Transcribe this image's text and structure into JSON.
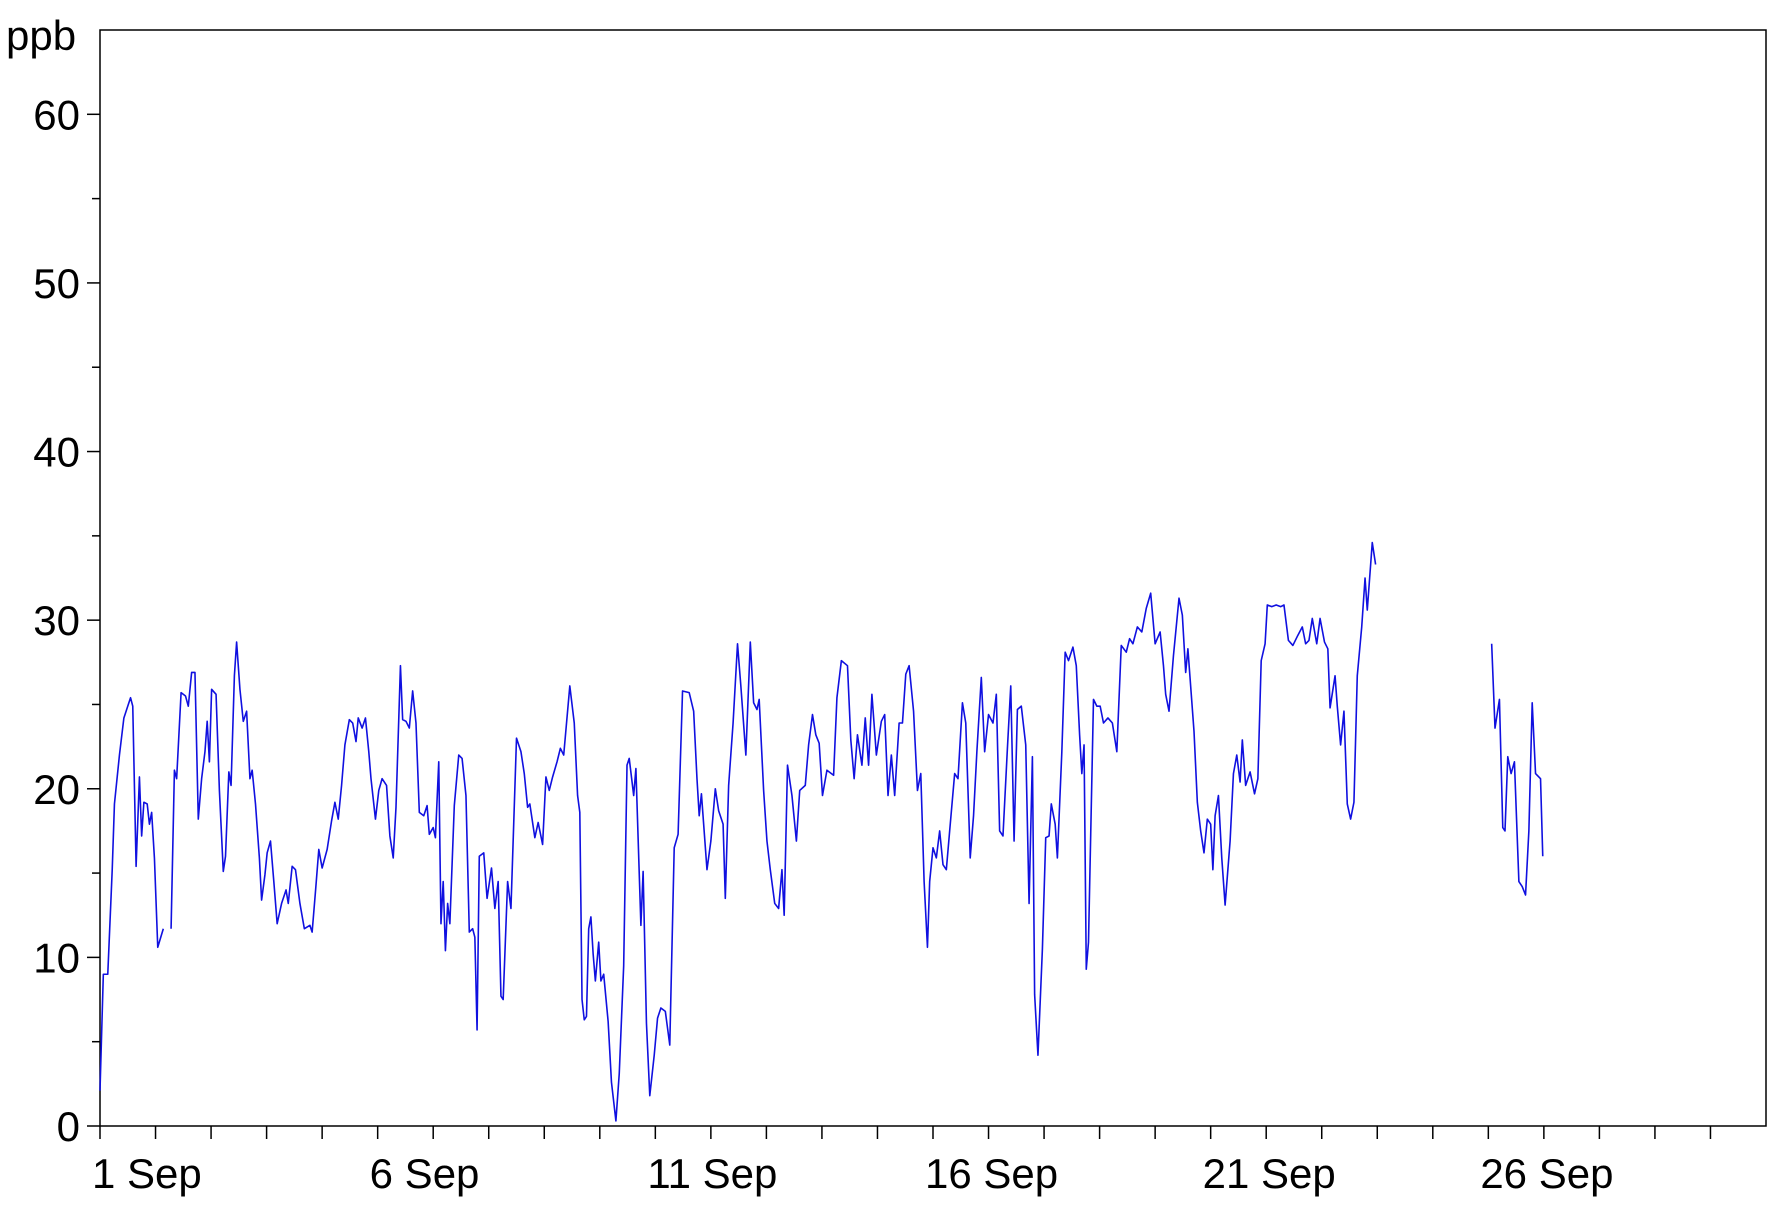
{
  "chart_data": {
    "type": "line",
    "y_label": "ppb",
    "xlim": [
      1,
      31
    ],
    "ylim": [
      0,
      65
    ],
    "xticks": [
      {
        "value": 1,
        "label": "1 Sep"
      },
      {
        "value": 6,
        "label": "6 Sep"
      },
      {
        "value": 11,
        "label": "11 Sep"
      },
      {
        "value": 16,
        "label": "16 Sep"
      },
      {
        "value": 21,
        "label": "21 Sep"
      },
      {
        "value": 26,
        "label": "26 Sep"
      }
    ],
    "xminorticks": [
      2,
      3,
      4,
      5,
      7,
      8,
      9,
      10,
      12,
      13,
      14,
      15,
      17,
      18,
      19,
      20,
      22,
      23,
      24,
      25,
      27,
      28,
      29,
      30
    ],
    "yticks": [
      0,
      10,
      20,
      30,
      40,
      50,
      60
    ],
    "yminorticks": [
      5,
      15,
      25,
      35,
      45,
      55
    ],
    "color": "#1010e0",
    "x": [
      1.0,
      1.06,
      1.14,
      1.22,
      1.26,
      1.35,
      1.43,
      1.55,
      1.59,
      1.65,
      1.71,
      1.75,
      1.79,
      1.85,
      1.89,
      1.93,
      1.98,
      2.04,
      2.14,
      2.2,
      2.28,
      2.34,
      2.38,
      2.46,
      2.54,
      2.59,
      2.65,
      2.71,
      2.77,
      2.83,
      2.89,
      2.93,
      2.97,
      3.01,
      3.09,
      3.15,
      3.22,
      3.26,
      3.32,
      3.36,
      3.42,
      3.46,
      3.52,
      3.58,
      3.64,
      3.7,
      3.74,
      3.8,
      3.87,
      3.91,
      3.97,
      4.01,
      4.07,
      4.13,
      4.19,
      4.27,
      4.35,
      4.39,
      4.46,
      4.52,
      4.6,
      4.68,
      4.78,
      4.82,
      4.88,
      4.94,
      5.0,
      5.09,
      5.17,
      5.23,
      5.29,
      5.35,
      5.41,
      5.49,
      5.55,
      5.61,
      5.65,
      5.72,
      5.78,
      5.84,
      5.88,
      5.96,
      6.02,
      6.08,
      6.16,
      6.22,
      6.28,
      6.33,
      6.41,
      6.45,
      6.51,
      6.57,
      6.63,
      6.69,
      6.75,
      6.83,
      6.89,
      6.93,
      7.0,
      7.04,
      7.1,
      7.14,
      7.18,
      7.22,
      7.26,
      7.3,
      7.38,
      7.46,
      7.52,
      7.59,
      7.65,
      7.71,
      7.75,
      7.79,
      7.83,
      7.91,
      7.97,
      8.05,
      8.11,
      8.17,
      8.22,
      8.26,
      8.34,
      8.4,
      8.5,
      8.58,
      8.64,
      8.7,
      8.74,
      8.83,
      8.89,
      8.97,
      9.03,
      9.09,
      9.15,
      9.23,
      9.29,
      9.35,
      9.46,
      9.54,
      9.6,
      9.64,
      9.68,
      9.72,
      9.76,
      9.8,
      9.84,
      9.88,
      9.92,
      9.98,
      10.02,
      10.07,
      10.15,
      10.21,
      10.29,
      10.35,
      10.43,
      10.49,
      10.53,
      10.61,
      10.65,
      10.74,
      10.78,
      10.84,
      10.9,
      10.98,
      11.04,
      11.1,
      11.18,
      11.22,
      11.26,
      11.34,
      11.41,
      11.49,
      11.61,
      11.69,
      11.75,
      11.79,
      11.83,
      11.93,
      12.0,
      12.08,
      12.14,
      12.22,
      12.26,
      12.32,
      12.4,
      12.48,
      12.54,
      12.63,
      12.71,
      12.77,
      12.83,
      12.87,
      12.95,
      13.01,
      13.07,
      13.15,
      13.22,
      13.28,
      13.32,
      13.38,
      13.46,
      13.54,
      13.6,
      13.7,
      13.76,
      13.83,
      13.89,
      13.95,
      14.01,
      14.09,
      14.21,
      14.27,
      14.35,
      14.46,
      14.52,
      14.58,
      14.64,
      14.72,
      14.78,
      14.84,
      14.9,
      14.98,
      15.07,
      15.13,
      15.19,
      15.25,
      15.31,
      15.39,
      15.45,
      15.51,
      15.57,
      15.65,
      15.72,
      15.78,
      15.84,
      15.9,
      15.94,
      16.0,
      16.06,
      16.12,
      16.18,
      16.24,
      16.3,
      16.39,
      16.45,
      16.53,
      16.59,
      16.67,
      16.73,
      16.79,
      16.87,
      16.93,
      17.0,
      17.08,
      17.14,
      17.2,
      17.26,
      17.34,
      17.4,
      17.46,
      17.52,
      17.59,
      17.67,
      17.73,
      17.79,
      17.83,
      17.89,
      17.97,
      18.03,
      18.09,
      18.13,
      18.2,
      18.24,
      18.32,
      18.38,
      18.44,
      18.52,
      18.58,
      18.64,
      18.68,
      18.72,
      18.76,
      18.8,
      18.89,
      18.95,
      19.01,
      19.07,
      19.15,
      19.23,
      19.31,
      19.39,
      19.48,
      19.54,
      19.6,
      19.68,
      19.76,
      19.84,
      19.92,
      20.0,
      20.09,
      20.15,
      20.19,
      20.25,
      20.33,
      20.43,
      20.49,
      20.55,
      20.59,
      20.7,
      20.76,
      20.82,
      20.88,
      20.94,
      21.0,
      21.04,
      21.08,
      21.14,
      21.2,
      21.26,
      21.35,
      21.41,
      21.47,
      21.53,
      21.57,
      21.63,
      21.71,
      21.79,
      21.85,
      21.91,
      21.98,
      22.02,
      22.1,
      22.18,
      22.26,
      22.32,
      22.4,
      22.48,
      22.57,
      22.65,
      22.71,
      22.77,
      22.83,
      22.91,
      22.97,
      23.05,
      23.11,
      23.15,
      23.24,
      23.28,
      23.34,
      23.4,
      23.46,
      23.52,
      23.58,
      23.64,
      23.72,
      23.78,
      23.82,
      23.91,
      23.97,
      25.0,
      26.06,
      26.12,
      26.2,
      26.26,
      26.3,
      26.35,
      26.41,
      26.47,
      26.55,
      26.61,
      26.67,
      26.73,
      26.79,
      26.85,
      26.94,
      26.98
    ],
    "values": [
      2.1,
      9.0,
      9.0,
      15.2,
      19.1,
      22.0,
      24.2,
      25.4,
      24.9,
      15.4,
      20.7,
      17.2,
      19.2,
      19.1,
      17.9,
      18.6,
      15.9,
      10.6,
      11.7,
      null,
      11.7,
      21.1,
      20.6,
      25.7,
      25.5,
      24.9,
      26.9,
      26.9,
      18.2,
      20.6,
      22.2,
      24.0,
      21.6,
      25.9,
      25.6,
      19.9,
      15.1,
      16.0,
      21.0,
      20.2,
      26.7,
      28.7,
      25.9,
      24.0,
      24.6,
      20.6,
      21.1,
      19.1,
      15.9,
      13.4,
      14.9,
      16.2,
      16.9,
      14.5,
      12.0,
      13.2,
      14.0,
      13.2,
      15.4,
      15.2,
      13.2,
      11.7,
      11.9,
      11.5,
      13.9,
      16.4,
      15.3,
      16.4,
      18.1,
      19.2,
      18.2,
      20.2,
      22.6,
      24.1,
      23.9,
      22.8,
      24.2,
      23.6,
      24.2,
      22.2,
      20.6,
      18.2,
      19.9,
      20.6,
      20.2,
      17.2,
      15.9,
      18.9,
      27.3,
      24.1,
      24.0,
      23.6,
      25.8,
      23.9,
      18.6,
      18.4,
      19.0,
      17.3,
      17.7,
      17.1,
      21.6,
      12.0,
      14.5,
      10.4,
      13.2,
      12.0,
      19.0,
      22.0,
      21.8,
      19.6,
      11.5,
      11.7,
      11.2,
      5.7,
      16.0,
      16.2,
      13.5,
      15.3,
      12.9,
      14.5,
      7.7,
      7.5,
      14.5,
      12.9,
      23.0,
      22.2,
      20.9,
      18.9,
      19.1,
      17.1,
      18.0,
      16.7,
      20.7,
      19.9,
      20.7,
      21.6,
      22.4,
      22.0,
      26.1,
      23.9,
      19.6,
      18.6,
      7.5,
      6.3,
      6.5,
      11.7,
      12.4,
      10.2,
      8.6,
      10.9,
      8.6,
      9.0,
      6.2,
      2.6,
      0.3,
      3.1,
      9.5,
      21.4,
      21.8,
      19.6,
      21.2,
      11.9,
      15.1,
      6.1,
      1.8,
      4.2,
      6.4,
      7.0,
      6.8,
      5.8,
      4.8,
      16.5,
      17.3,
      25.8,
      25.7,
      24.6,
      20.6,
      18.4,
      19.7,
      15.2,
      16.9,
      20.0,
      18.7,
      17.9,
      13.5,
      20.2,
      23.9,
      28.6,
      26.1,
      22.0,
      28.7,
      25.1,
      24.7,
      25.3,
      19.9,
      16.9,
      15.2,
      13.2,
      12.9,
      15.2,
      12.5,
      21.4,
      19.6,
      16.9,
      19.9,
      20.2,
      22.6,
      24.4,
      23.2,
      22.7,
      19.6,
      21.1,
      20.8,
      25.4,
      27.6,
      27.3,
      22.9,
      20.6,
      23.2,
      21.4,
      24.2,
      21.4,
      25.6,
      22.0,
      24.0,
      24.4,
      19.6,
      22.0,
      19.6,
      23.9,
      23.9,
      26.8,
      27.3,
      24.6,
      19.9,
      20.9,
      14.5,
      10.6,
      14.5,
      16.5,
      15.9,
      17.5,
      15.5,
      15.2,
      17.5,
      20.9,
      20.6,
      25.1,
      23.9,
      15.9,
      18.4,
      22.2,
      26.6,
      22.2,
      24.4,
      23.9,
      25.6,
      17.5,
      17.2,
      22.4,
      26.1,
      16.9,
      24.7,
      24.9,
      22.6,
      13.2,
      21.9,
      7.8,
      4.2,
      10.5,
      17.1,
      17.2,
      19.1,
      17.9,
      15.9,
      22.2,
      28.1,
      27.6,
      28.4,
      27.3,
      23.2,
      20.9,
      22.6,
      9.3,
      10.9,
      25.3,
      24.9,
      24.9,
      23.9,
      24.2,
      23.9,
      22.2,
      28.5,
      28.1,
      28.9,
      28.6,
      29.6,
      29.3,
      30.7,
      31.6,
      28.6,
      29.3,
      27.3,
      25.6,
      24.6,
      27.9,
      31.3,
      30.3,
      26.9,
      28.3,
      23.4,
      19.2,
      17.5,
      16.2,
      18.2,
      17.9,
      15.2,
      18.4,
      19.6,
      15.9,
      13.1,
      16.9,
      20.9,
      22.0,
      20.4,
      22.9,
      20.2,
      21.0,
      19.7,
      20.6,
      27.6,
      28.6,
      30.9,
      30.8,
      30.9,
      30.8,
      30.9,
      28.8,
      28.5,
      29.1,
      29.6,
      28.6,
      28.8,
      30.1,
      28.6,
      30.1,
      28.7,
      28.3,
      24.8,
      26.7,
      24.9,
      22.6,
      24.6,
      19.1,
      18.2,
      19.2,
      26.7,
      29.6,
      32.5,
      30.6,
      34.6,
      33.3,
      null,
      28.6,
      23.6,
      25.3,
      17.7,
      17.5,
      21.9,
      20.9,
      21.6,
      14.5,
      14.2,
      13.7,
      17.5,
      25.1,
      20.9,
      20.6,
      16.0
    ]
  }
}
